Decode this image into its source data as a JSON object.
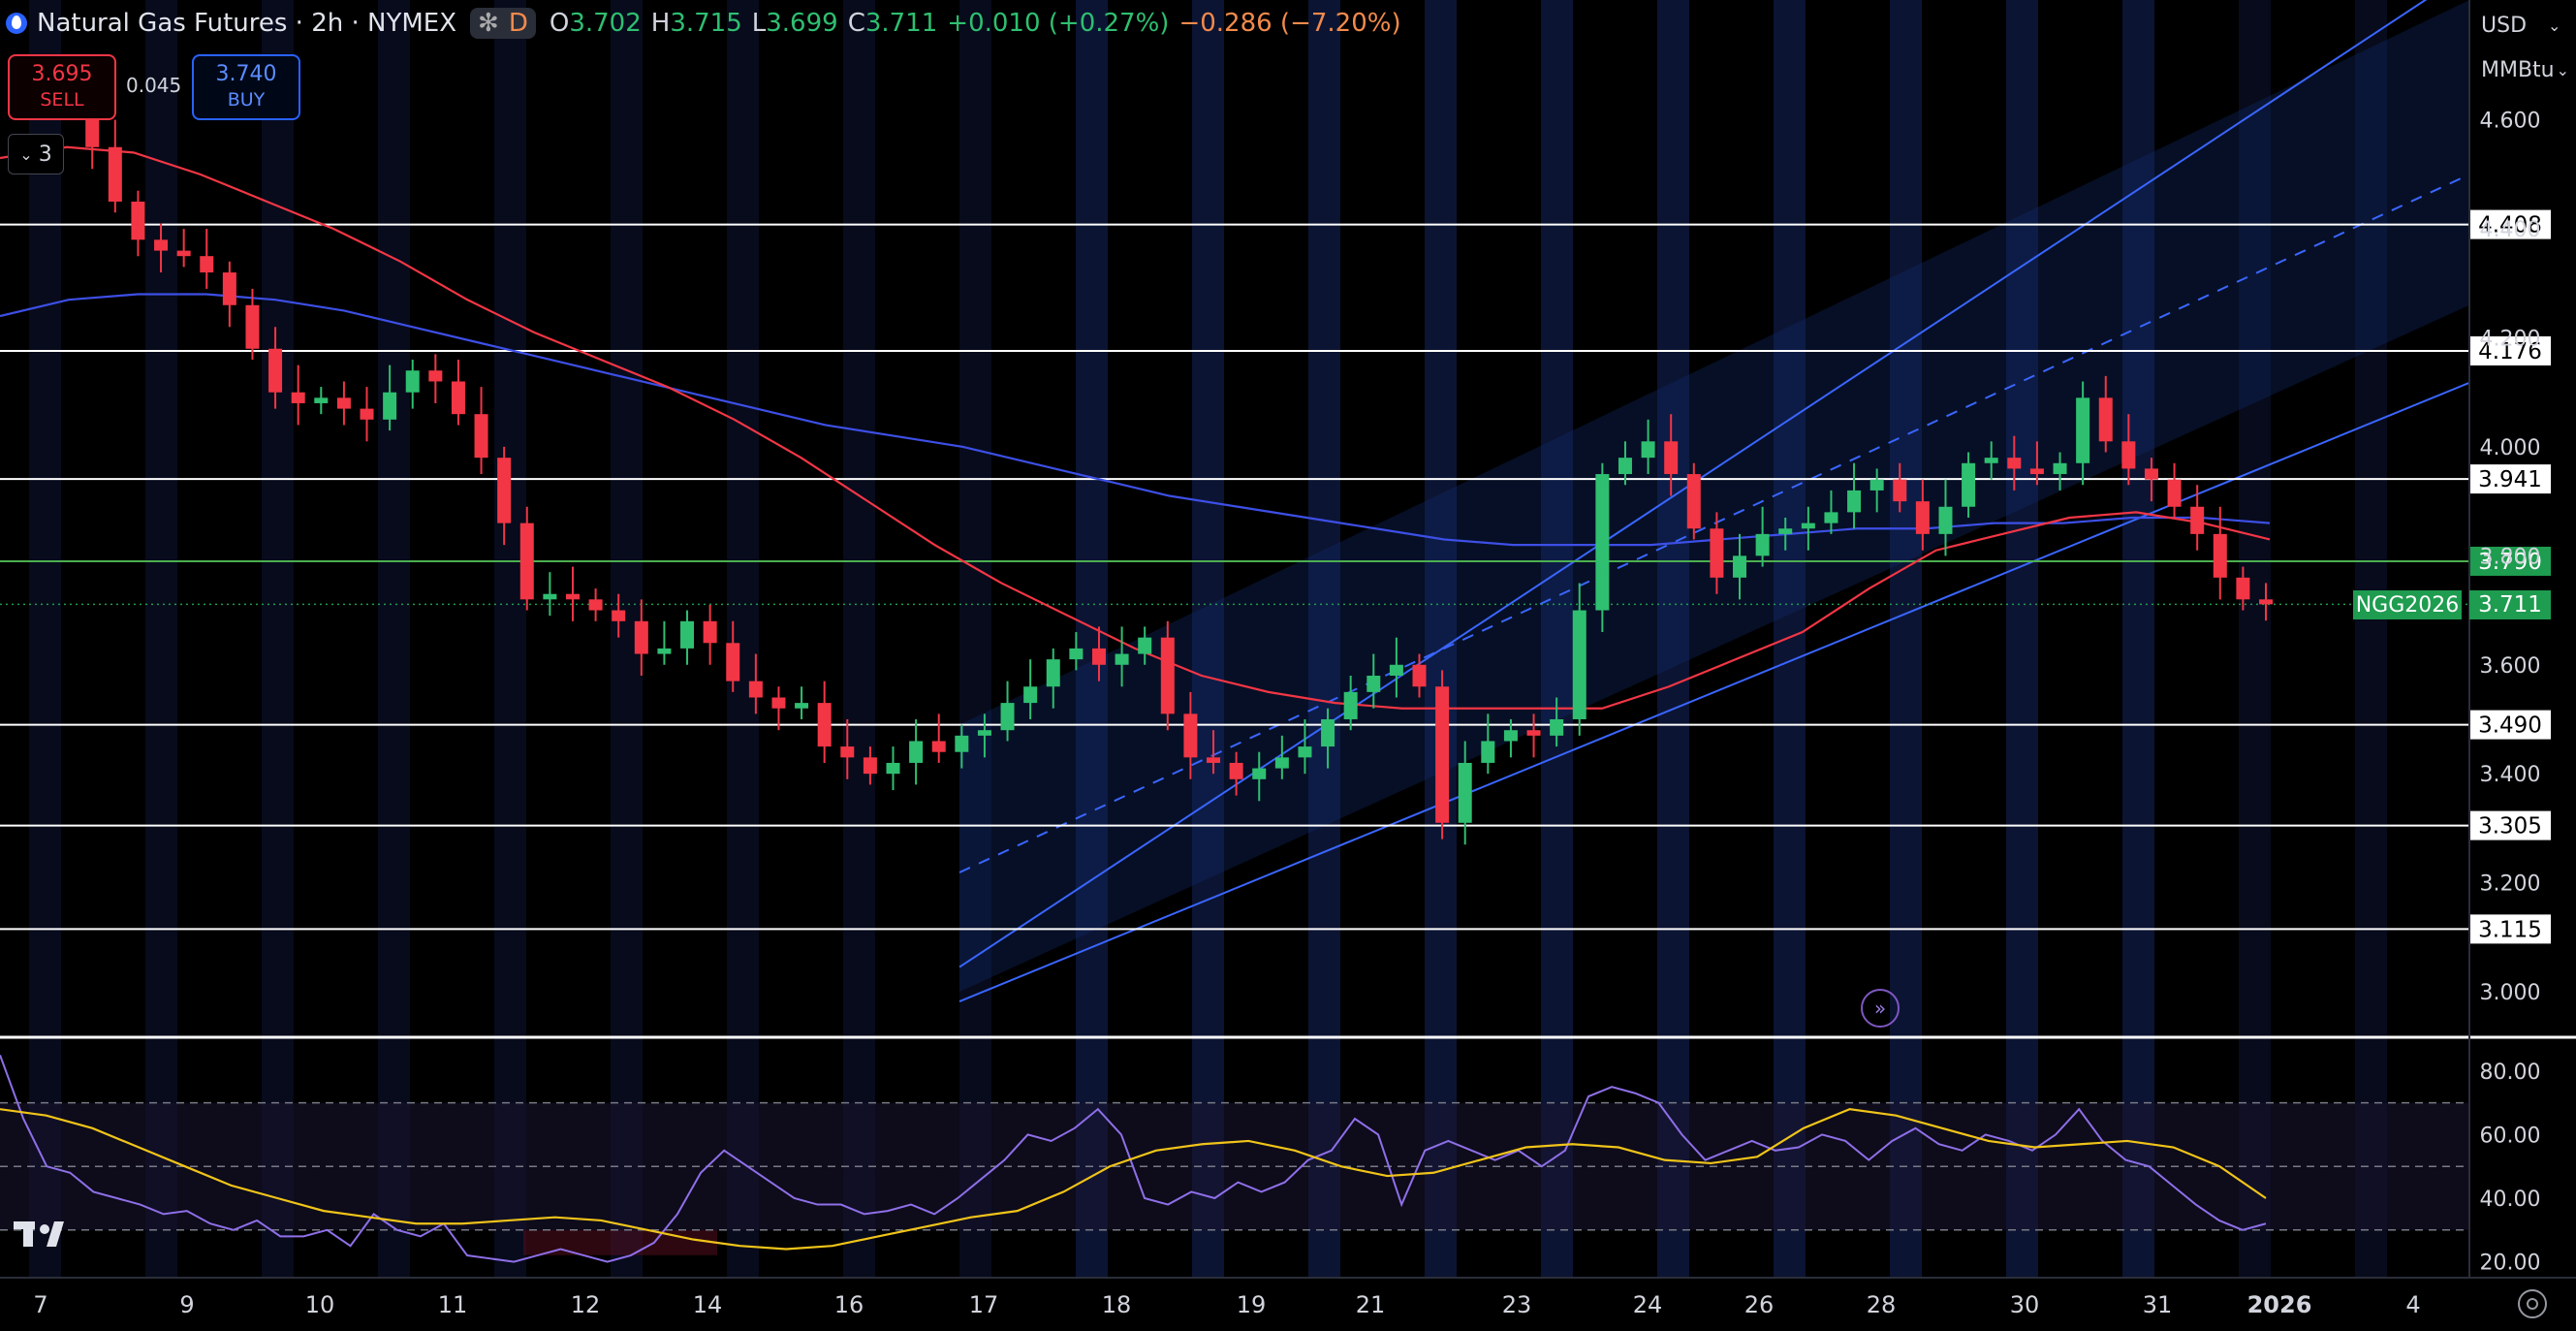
{
  "header": {
    "symbol_title": "Natural Gas Futures · 2h · NYMEX",
    "badge_star": "✻",
    "badge_d": "D",
    "o_label": "O",
    "o": "3.702",
    "h_label": "H",
    "h": "3.715",
    "l_label": "L",
    "l": "3.699",
    "c_label": "C",
    "c": "3.711",
    "change": "+0.010 (+0.27%)",
    "change2": "−0.286 (−7.20%)"
  },
  "trade": {
    "sell_price": "3.695",
    "sell_label": "SELL",
    "spread": "0.045",
    "buy_price": "3.740",
    "buy_label": "BUY",
    "layers_count": "3"
  },
  "axis": {
    "currency": "USD",
    "unit": "MMBtu",
    "ticker_label": "NGG2026",
    "last_price": "3.711",
    "price_ticks": [
      "4.600",
      "4.400",
      "4.200",
      "4.000",
      "3.800",
      "3.600",
      "3.400",
      "3.200",
      "3.000"
    ],
    "level_labels": [
      "4.408",
      "4.176",
      "3.941",
      "3.790",
      "3.490",
      "3.305",
      "3.115"
    ],
    "rsi_ticks": [
      "80.00",
      "60.00",
      "40.00",
      "20.00"
    ],
    "x_ticks": [
      "7",
      "9",
      "10",
      "11",
      "12",
      "14",
      "16",
      "17",
      "18",
      "19",
      "21",
      "23",
      "24",
      "26",
      "28",
      "30",
      "31",
      "2026",
      "4"
    ]
  },
  "colors": {
    "up": "#2fbf71",
    "down": "#f23645",
    "ma_fast": "#f23645",
    "ma_slow": "#3d4fe6",
    "channel": "#3a66ff",
    "rsi": "#8e6fe8",
    "rsi_ma": "#f0c419",
    "level": "#ffffff",
    "level_green": "#4caf50"
  },
  "chart_data": [
    {
      "type": "candlestick",
      "title": "Natural Gas Futures · 2h · NYMEX",
      "ylim": [
        2.92,
        4.82
      ],
      "x": [
        "7",
        "9",
        "10",
        "11",
        "12",
        "14",
        "16",
        "17",
        "18",
        "19",
        "21",
        "23",
        "24",
        "26",
        "28",
        "30",
        "31",
        "2026",
        "4"
      ],
      "horizontal_levels": [
        4.408,
        4.176,
        3.941,
        3.79,
        3.49,
        3.305,
        3.115
      ],
      "last_price": 3.711,
      "price_path": [
        4.66,
        4.63,
        4.55,
        4.45,
        4.38,
        4.36,
        4.35,
        4.32,
        4.26,
        4.18,
        4.1,
        4.08,
        4.09,
        4.07,
        4.05,
        4.1,
        4.14,
        4.12,
        4.06,
        3.98,
        3.86,
        3.72,
        3.73,
        3.72,
        3.7,
        3.68,
        3.62,
        3.63,
        3.68,
        3.64,
        3.57,
        3.54,
        3.52,
        3.53,
        3.45,
        3.43,
        3.4,
        3.42,
        3.46,
        3.44,
        3.47,
        3.48,
        3.53,
        3.56,
        3.61,
        3.63,
        3.6,
        3.62,
        3.65,
        3.51,
        3.43,
        3.42,
        3.39,
        3.41,
        3.43,
        3.45,
        3.5,
        3.55,
        3.58,
        3.6,
        3.56,
        3.31,
        3.42,
        3.46,
        3.48,
        3.47,
        3.5,
        3.7,
        3.95,
        3.98,
        4.01,
        3.95,
        3.85,
        3.76,
        3.8,
        3.84,
        3.85,
        3.86,
        3.88,
        3.92,
        3.94,
        3.9,
        3.84,
        3.89,
        3.97,
        3.98,
        3.96,
        3.95,
        3.97,
        4.09,
        4.01,
        3.96,
        3.94,
        3.89,
        3.84,
        3.76,
        3.72,
        3.711
      ],
      "ma_fast": [
        4.53,
        4.55,
        4.54,
        4.5,
        4.45,
        4.4,
        4.34,
        4.27,
        4.21,
        4.16,
        4.11,
        4.05,
        3.98,
        3.9,
        3.82,
        3.75,
        3.69,
        3.63,
        3.58,
        3.55,
        3.53,
        3.52,
        3.52,
        3.52,
        3.52,
        3.56,
        3.61,
        3.66,
        3.74,
        3.81,
        3.84,
        3.87,
        3.88,
        3.86,
        3.83
      ],
      "ma_slow": [
        4.24,
        4.27,
        4.28,
        4.28,
        4.27,
        4.25,
        4.22,
        4.19,
        4.16,
        4.13,
        4.1,
        4.07,
        4.04,
        4.02,
        4.0,
        3.97,
        3.94,
        3.91,
        3.89,
        3.87,
        3.85,
        3.83,
        3.82,
        3.82,
        3.82,
        3.83,
        3.84,
        3.85,
        3.85,
        3.86,
        3.86,
        3.87,
        3.87,
        3.86
      ],
      "channel_upper": [
        [
          3.49,
          3.49
        ],
        [
          4.78,
          4.82
        ]
      ],
      "channel_lower": [
        [
          3.0,
          2.92
        ],
        [
          4.28,
          4.26
        ]
      ]
    },
    {
      "type": "line",
      "title": "RSI",
      "ylim": [
        15,
        90
      ],
      "bands": [
        70,
        50,
        30
      ],
      "rsi": [
        85,
        65,
        50,
        48,
        42,
        40,
        38,
        35,
        36,
        32,
        30,
        33,
        28,
        28,
        30,
        25,
        35,
        30,
        28,
        32,
        22,
        21,
        20,
        22,
        24,
        22,
        20,
        22,
        26,
        35,
        48,
        55,
        50,
        45,
        40,
        38,
        38,
        35,
        36,
        38,
        35,
        40,
        46,
        52,
        60,
        58,
        62,
        68,
        60,
        40,
        38,
        42,
        40,
        45,
        42,
        45,
        52,
        55,
        65,
        60,
        38,
        55,
        58,
        55,
        52,
        55,
        50,
        55,
        72,
        75,
        73,
        70,
        60,
        52,
        55,
        58,
        55,
        56,
        60,
        58,
        52,
        58,
        62,
        57,
        55,
        60,
        58,
        55,
        60,
        68,
        58,
        52,
        50,
        44,
        38,
        33,
        30,
        32
      ],
      "rsi_ma": [
        68,
        66,
        62,
        56,
        50,
        44,
        40,
        36,
        34,
        32,
        32,
        33,
        34,
        33,
        30,
        27,
        25,
        24,
        25,
        28,
        31,
        34,
        36,
        42,
        50,
        55,
        57,
        58,
        55,
        50,
        47,
        48,
        52,
        56,
        57,
        56,
        52,
        51,
        53,
        62,
        68,
        66,
        62,
        58,
        56,
        57,
        58,
        56,
        50,
        40
      ]
    }
  ]
}
